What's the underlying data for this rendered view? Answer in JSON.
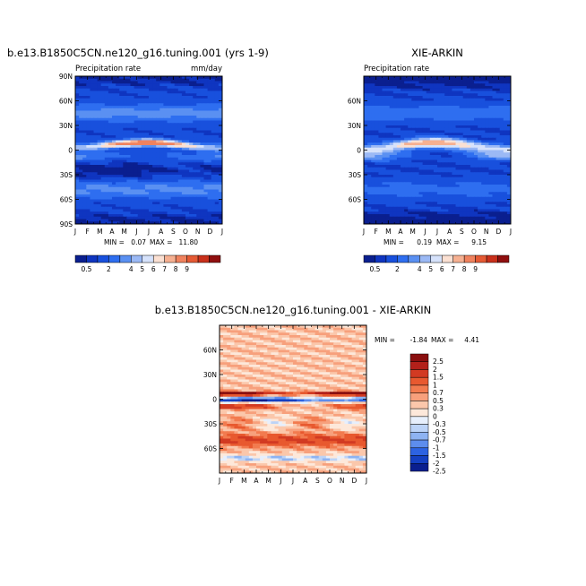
{
  "chart_data": [
    {
      "type": "heatmap",
      "title": "b.e13.B1850C5CN.ne120_g16.tuning.001 (yrs 1-9)",
      "subtitle": "Precipitation rate",
      "units": "mm/day",
      "x_ticks": [
        "J",
        "F",
        "M",
        "A",
        "M",
        "J",
        "J",
        "A",
        "S",
        "O",
        "N",
        "D",
        "J"
      ],
      "y_ticks": [
        "90N",
        "60N",
        "30N",
        "0",
        "30S",
        "60S",
        "90S"
      ],
      "min_label": "MIN =",
      "min_value": "0.07",
      "max_label": "MAX =",
      "max_value": "11.80",
      "colorbar_labels": [
        "0.5",
        "2",
        "4",
        "5",
        "6",
        "7",
        "8",
        "9"
      ]
    },
    {
      "type": "heatmap",
      "title": "XIE-ARKIN",
      "subtitle": "Precipitation rate",
      "units": "",
      "x_ticks": [
        "J",
        "F",
        "M",
        "A",
        "M",
        "J",
        "J",
        "A",
        "S",
        "O",
        "N",
        "D",
        "J"
      ],
      "y_ticks": [
        "60N",
        "30N",
        "0",
        "30S",
        "60S"
      ],
      "min_label": "MIN =",
      "min_value": "0.19",
      "max_label": "MAX =",
      "max_value": "9.15",
      "colorbar_labels": [
        "0.5",
        "2",
        "4",
        "5",
        "6",
        "7",
        "8",
        "9"
      ]
    },
    {
      "type": "heatmap",
      "title": "b.e13.B1850C5CN.ne120_g16.tuning.001 - XIE-ARKIN",
      "x_ticks": [
        "J",
        "F",
        "M",
        "A",
        "M",
        "J",
        "J",
        "A",
        "S",
        "O",
        "N",
        "D",
        "J"
      ],
      "y_ticks": [
        "60N",
        "30N",
        "0",
        "30S",
        "60S"
      ],
      "min_label": "MIN =",
      "min_value": "-1.84",
      "max_label": "MAX =",
      "max_value": "4.41",
      "colorbar_labels": [
        "2.5",
        "2",
        "1.5",
        "1",
        "0.7",
        "0.5",
        "0.3",
        "0",
        "-0.3",
        "-0.5",
        "-0.7",
        "-1",
        "-1.5",
        "-2",
        "-2.5"
      ]
    }
  ],
  "colors": {
    "seq": [
      "#0a1f8f",
      "#0f35c0",
      "#1850dd",
      "#2e6ef0",
      "#5a90f2",
      "#9bb9f5",
      "#d6e2fb",
      "#fbe0d2",
      "#f6b091",
      "#f0825e",
      "#e55a34",
      "#c9301b",
      "#8f0f0f"
    ],
    "div": [
      "#8a0f0f",
      "#b3201a",
      "#d23a22",
      "#e8592f",
      "#f27b4f",
      "#f7a07c",
      "#fbc7ab",
      "#fde8da",
      "#e7effc",
      "#bcd3f7",
      "#8eb3f2",
      "#5d8ded",
      "#2d63e2",
      "#1440c2",
      "#0a1f8f"
    ]
  }
}
